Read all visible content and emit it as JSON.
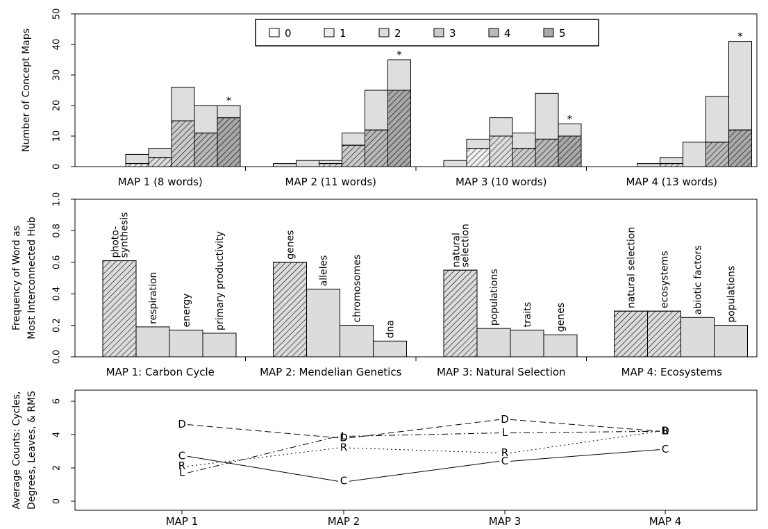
{
  "chart_data": [
    {
      "type": "bar",
      "stacked": true,
      "ylabel": "Number of Concept Maps",
      "ylim": [
        0,
        50
      ],
      "yticks": [
        0,
        10,
        20,
        30,
        40,
        50
      ],
      "legend": {
        "placement": "top-center",
        "entries": [
          "0",
          "1",
          "2",
          "3",
          "4",
          "5"
        ]
      },
      "groups": [
        {
          "label": "MAP 1 (8 words)",
          "bottom": [
            0,
            1,
            3,
            15,
            11,
            16
          ],
          "totals": [
            0,
            4,
            6,
            26,
            20,
            20
          ],
          "star_index": 5
        },
        {
          "label": "MAP 2 (11 words)",
          "bottom": [
            0,
            0,
            1,
            7,
            12,
            25
          ],
          "totals": [
            1,
            2,
            2,
            11,
            25,
            35
          ],
          "star_index": 5
        },
        {
          "label": "MAP 3 (10 words)",
          "bottom": [
            0,
            6,
            10,
            6,
            9,
            10
          ],
          "totals": [
            2,
            9,
            16,
            11,
            24,
            14
          ],
          "star_index": 5
        },
        {
          "label": "MAP 4 (13 words)",
          "bottom": [
            0,
            0,
            1,
            0,
            8,
            12
          ],
          "totals": [
            0,
            1,
            3,
            8,
            23,
            41
          ],
          "star_index": 5
        }
      ],
      "annotation": "*"
    },
    {
      "type": "bar",
      "ylabel": [
        "Frequency of Word as",
        "Most Interconnected Hub"
      ],
      "ylim": [
        0,
        1
      ],
      "yticks": [
        "0.0",
        "0.2",
        "0.4",
        "0.6",
        "0.8",
        "1.0"
      ],
      "groups": [
        {
          "label": "MAP 1: Carbon Cycle",
          "bars": [
            {
              "word": [
                "photo-",
                "synthesis"
              ],
              "value": 0.61,
              "hatched": true
            },
            {
              "word": [
                "respiration"
              ],
              "value": 0.19,
              "hatched": false
            },
            {
              "word": [
                "energy"
              ],
              "value": 0.17,
              "hatched": false
            },
            {
              "word": [
                "primary productivity"
              ],
              "value": 0.15,
              "hatched": false
            }
          ]
        },
        {
          "label": "MAP 2: Mendelian Genetics",
          "bars": [
            {
              "word": [
                "genes"
              ],
              "value": 0.6,
              "hatched": true
            },
            {
              "word": [
                "alleles"
              ],
              "value": 0.43,
              "hatched": false
            },
            {
              "word": [
                "chromosomes"
              ],
              "value": 0.2,
              "hatched": false
            },
            {
              "word": [
                "dna"
              ],
              "value": 0.1,
              "hatched": false
            }
          ]
        },
        {
          "label": "MAP 3: Natural Selection",
          "bars": [
            {
              "word": [
                "natural",
                "selection"
              ],
              "value": 0.55,
              "hatched": true
            },
            {
              "word": [
                "populations"
              ],
              "value": 0.18,
              "hatched": false
            },
            {
              "word": [
                "traits"
              ],
              "value": 0.17,
              "hatched": false
            },
            {
              "word": [
                "genes"
              ],
              "value": 0.14,
              "hatched": false
            }
          ]
        },
        {
          "label": "MAP 4: Ecosystems",
          "bars": [
            {
              "word": [
                "natural selection"
              ],
              "value": 0.29,
              "hatched": true
            },
            {
              "word": [
                "ecosystems"
              ],
              "value": 0.29,
              "hatched": true
            },
            {
              "word": [
                "abiotic factors"
              ],
              "value": 0.25,
              "hatched": false
            },
            {
              "word": [
                "populations"
              ],
              "value": 0.2,
              "hatched": false
            }
          ]
        }
      ]
    },
    {
      "type": "line",
      "ylabel": [
        "Average Counts: Cycles,",
        "Degrees, Leaves, & RMS"
      ],
      "ylim": [
        0,
        6
      ],
      "yticks": [
        0,
        2,
        4,
        6
      ],
      "categories": [
        "MAP 1",
        "MAP 2",
        "MAP 3",
        "MAP 4"
      ],
      "series": [
        {
          "name": "C",
          "style": "solid",
          "values": [
            2.7,
            1.2,
            2.4,
            3.1
          ]
        },
        {
          "name": "D",
          "style": "dashed",
          "values": [
            4.6,
            3.8,
            4.9,
            4.2
          ]
        },
        {
          "name": "L",
          "style": "dashdot",
          "values": [
            1.7,
            3.9,
            4.1,
            4.2
          ]
        },
        {
          "name": "R",
          "style": "dotted",
          "values": [
            2.1,
            3.2,
            2.9,
            4.2
          ]
        }
      ]
    }
  ]
}
